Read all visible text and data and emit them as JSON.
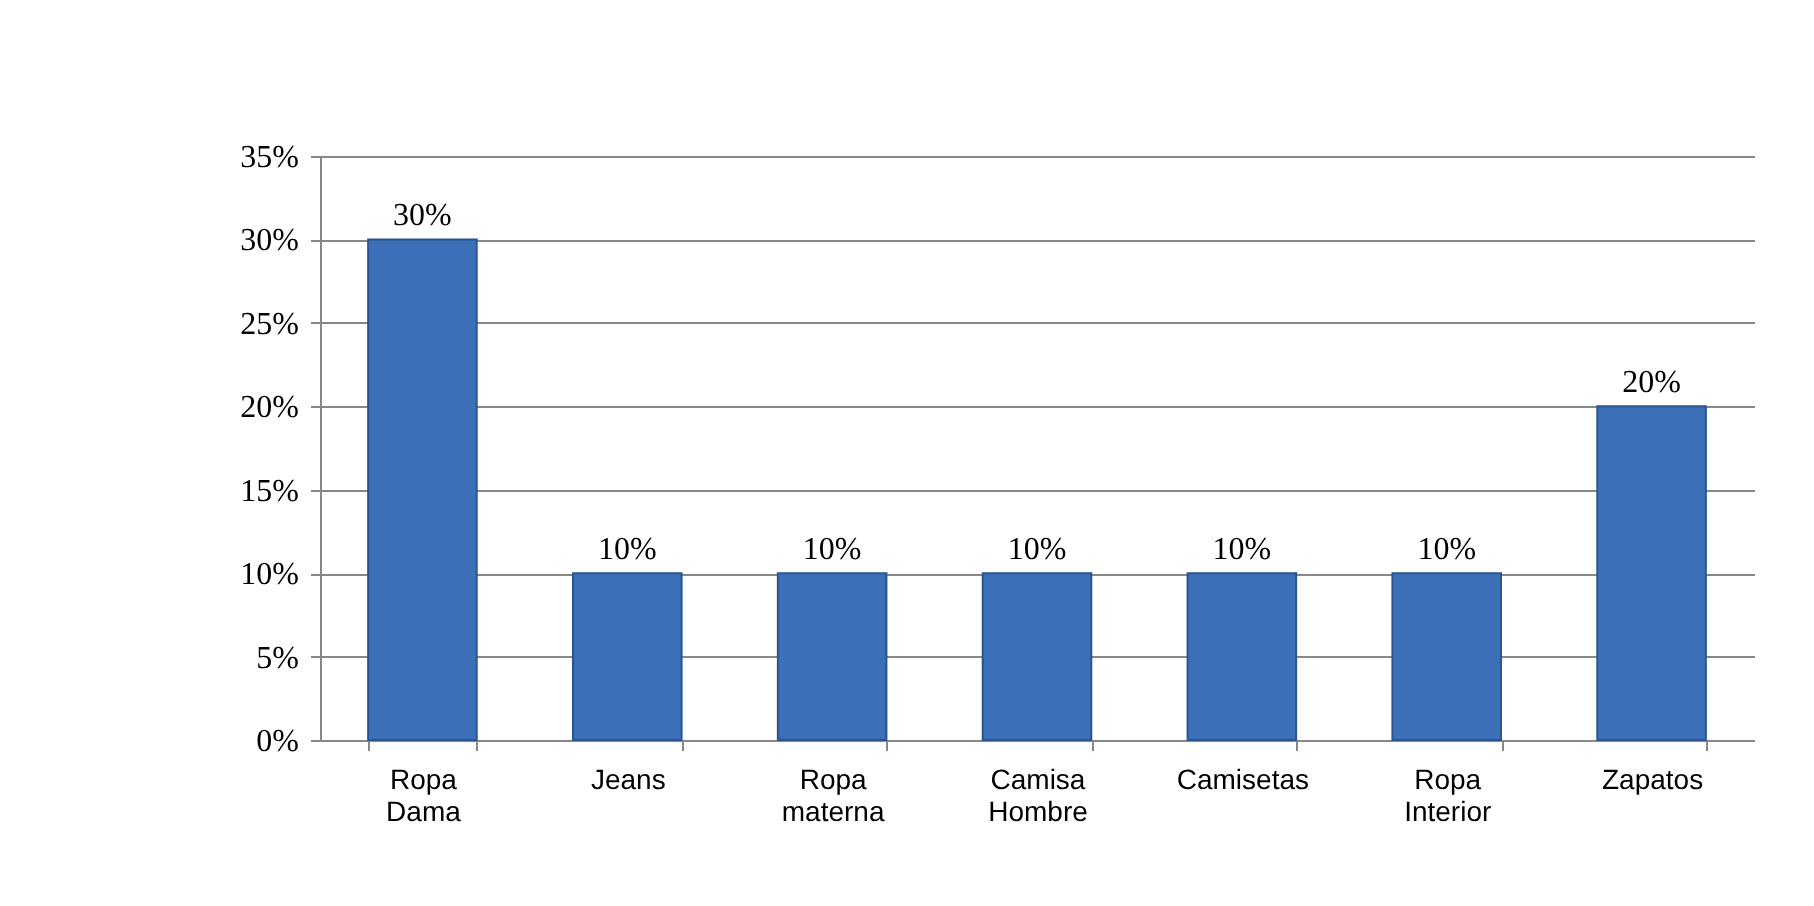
{
  "chart_data": {
    "type": "bar",
    "categories": [
      "Ropa Dama",
      "Jeans",
      "Ropa materna",
      "Camisa Hombre",
      "Camisetas",
      "Ropa Interior",
      "Zapatos"
    ],
    "values": [
      30,
      10,
      10,
      10,
      10,
      10,
      20
    ],
    "value_labels": [
      "30%",
      "10%",
      "10%",
      "10%",
      "10%",
      "10%",
      "20%"
    ],
    "color": "#3b70b8",
    "ylim": [
      0,
      35
    ],
    "yticks": [
      {
        "value": 0,
        "label": "0%"
      },
      {
        "value": 5,
        "label": "5%"
      },
      {
        "value": 10,
        "label": "10%"
      },
      {
        "value": 15,
        "label": "15%"
      },
      {
        "value": 20,
        "label": "20%"
      },
      {
        "value": 25,
        "label": "25%"
      },
      {
        "value": 30,
        "label": "30%"
      },
      {
        "value": 35,
        "label": "35%"
      }
    ],
    "grid": "y"
  }
}
